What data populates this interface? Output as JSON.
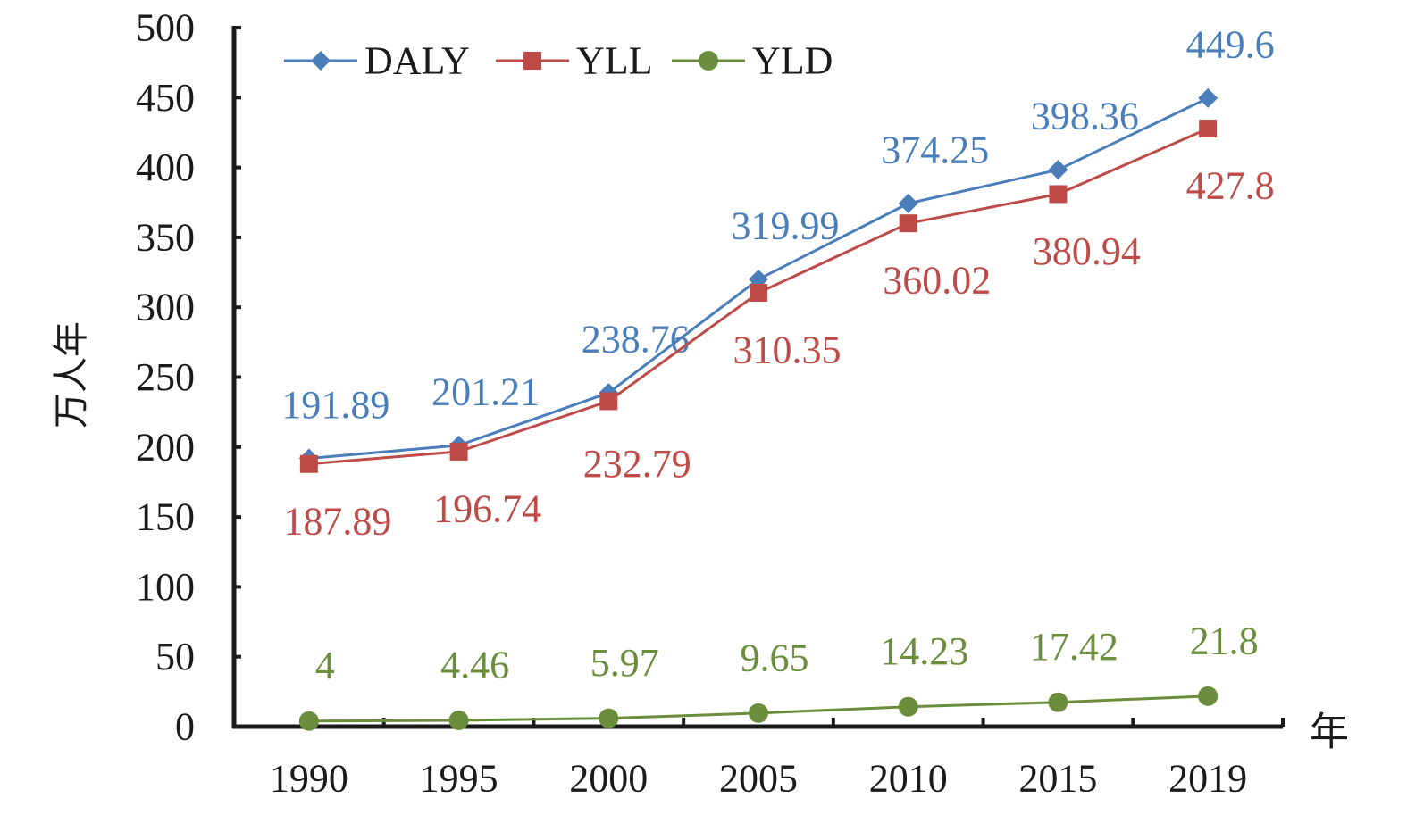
{
  "chart_data": {
    "type": "line",
    "title": "",
    "xlabel": "年",
    "ylabel": "万人年",
    "categories": [
      "1990",
      "1995",
      "2000",
      "2005",
      "2010",
      "2015",
      "2019"
    ],
    "ylim": [
      0,
      500
    ],
    "yticks": [
      0,
      50,
      100,
      150,
      200,
      250,
      300,
      350,
      400,
      450,
      500
    ],
    "grid": false,
    "legend_position": "top-left",
    "series": [
      {
        "name": "DALY",
        "color": "#4a7ebb",
        "marker": "diamond",
        "values": [
          191.89,
          201.21,
          238.76,
          319.99,
          374.25,
          398.36,
          449.6
        ],
        "labels": [
          "191.89",
          "201.21",
          "238.76",
          "319.99",
          "374.25",
          "398.36",
          "449.6"
        ]
      },
      {
        "name": "YLL",
        "color": "#be4b48",
        "marker": "square",
        "values": [
          187.89,
          196.74,
          232.79,
          310.35,
          360.02,
          380.94,
          427.8
        ],
        "labels": [
          "187.89",
          "196.74",
          "232.79",
          "310.35",
          "360.02",
          "380.94",
          "427.8"
        ]
      },
      {
        "name": "YLD",
        "color": "#6a8e3c",
        "marker": "circle",
        "values": [
          4,
          4.46,
          5.97,
          9.65,
          14.23,
          17.42,
          21.8
        ],
        "labels": [
          "4",
          "4.46",
          "5.97",
          "9.65",
          "14.23",
          "17.42",
          "21.8"
        ]
      }
    ]
  }
}
